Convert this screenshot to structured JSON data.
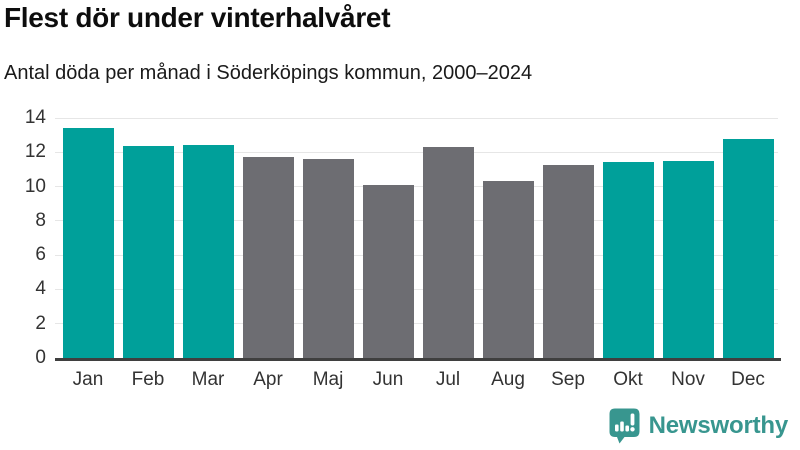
{
  "header": {
    "title": "Flest dör under vinterhalvåret",
    "subtitle": "Antal döda per månad i Söderköpings kommun, 2000–2024"
  },
  "chart_data": {
    "type": "bar",
    "categories": [
      "Jan",
      "Feb",
      "Mar",
      "Apr",
      "Maj",
      "Jun",
      "Jul",
      "Aug",
      "Sep",
      "Okt",
      "Nov",
      "Dec"
    ],
    "values": [
      13.4,
      12.35,
      12.45,
      11.7,
      11.6,
      10.1,
      12.3,
      10.3,
      11.25,
      11.45,
      11.5,
      12.75
    ],
    "bar_colors": [
      "#00a09a",
      "#00a09a",
      "#00a09a",
      "#6d6d72",
      "#6d6d72",
      "#6d6d72",
      "#6d6d72",
      "#6d6d72",
      "#6d6d72",
      "#00a09a",
      "#00a09a",
      "#00a09a"
    ],
    "title": "Flest dör under vinterhalvåret",
    "subtitle": "Antal döda per månad i Söderköpings kommun, 2000–2024",
    "xlabel": "",
    "ylabel": "",
    "ylim": [
      0,
      14
    ],
    "yticks": [
      0,
      2,
      4,
      6,
      8,
      10,
      12,
      14
    ],
    "grid": true,
    "legend": false
  },
  "colors": {
    "winter_bar": "#00a09a",
    "summer_bar": "#6d6d72",
    "gridline": "#e6e6e6",
    "axis_line": "#3f3f3f",
    "brand": "#38968f"
  },
  "footer": {
    "brand": "Newsworthy"
  }
}
